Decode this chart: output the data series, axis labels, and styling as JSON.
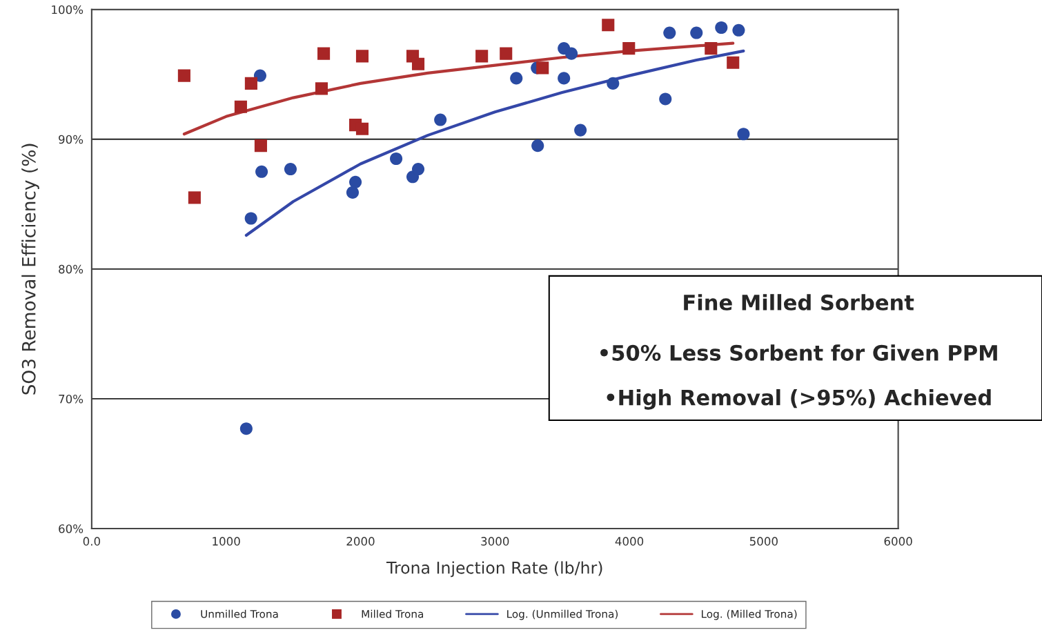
{
  "chart_data": {
    "type": "scatter",
    "xlabel": "Trona Injection Rate (lb/hr)",
    "ylabel": "SO3 Removal Efficiency (%)",
    "xlim": [
      0,
      6000
    ],
    "ylim": [
      60,
      100
    ],
    "xticks": [
      {
        "value": 0,
        "label": "0.0"
      },
      1000,
      2000,
      3000,
      4000,
      5000,
      6000
    ],
    "yticks": [
      {
        "value": 60,
        "label": "60%"
      },
      {
        "value": 70,
        "label": "70%"
      },
      {
        "value": 80,
        "label": "80%"
      },
      {
        "value": 90,
        "label": "90%"
      },
      {
        "value": 100,
        "label": "100%"
      }
    ],
    "grid": "y",
    "legend": "bottom",
    "series": [
      {
        "name": "Unmilled Trona",
        "marker": "circle",
        "color": "#2a4ba3",
        "x": [
          1253,
          1185,
          1264,
          1479,
          1150,
          1941,
          1962,
          2265,
          2388,
          2429,
          2594,
          3159,
          3313,
          3318,
          3513,
          3569,
          3513,
          3636,
          3878,
          4268,
          4299,
          4499,
          4684,
          4813,
          4849
        ],
        "values": [
          94.9,
          83.9,
          87.5,
          87.7,
          67.7,
          85.9,
          86.7,
          88.5,
          87.1,
          87.7,
          91.5,
          94.7,
          95.5,
          89.5,
          97.0,
          96.6,
          94.7,
          90.7,
          94.3,
          93.1,
          98.2,
          98.2,
          98.6,
          98.4,
          90.4
        ]
      },
      {
        "name": "Milled Trona",
        "marker": "square",
        "color": "#a82626",
        "x": [
          688,
          765,
          1109,
          1186,
          1258,
          1710,
          1726,
          1962,
          2013,
          2013,
          2388,
          2429,
          2902,
          3082,
          3354,
          3842,
          3996,
          4607,
          4771
        ],
        "values": [
          94.9,
          85.5,
          92.5,
          94.3,
          89.5,
          93.9,
          96.6,
          91.1,
          90.8,
          96.4,
          96.4,
          95.8,
          96.4,
          96.6,
          95.5,
          98.8,
          97.0,
          97.0,
          95.9
        ]
      },
      {
        "name": "Log. (Unmilled Trona)",
        "type": "line",
        "marker": "none",
        "color": "#3447a8",
        "x": [
          1150,
          1500,
          2000,
          2500,
          3000,
          3500,
          4000,
          4500,
          4849
        ],
        "values": [
          82.6,
          85.2,
          88.1,
          90.3,
          92.1,
          93.6,
          94.9,
          96.1,
          96.8
        ]
      },
      {
        "name": "Log. (Milled Trona)",
        "type": "line",
        "marker": "none",
        "color": "#b33636",
        "x": [
          688,
          1000,
          1500,
          2000,
          2500,
          3000,
          3500,
          4000,
          4771
        ],
        "values": [
          90.4,
          91.75,
          93.2,
          94.3,
          95.1,
          95.7,
          96.3,
          96.8,
          97.4
        ]
      }
    ],
    "annotations": [
      "Fine Milled Sorbent",
      "•50% Less Sorbent for Given PPM",
      "•High Removal (>95%) Achieved"
    ]
  }
}
